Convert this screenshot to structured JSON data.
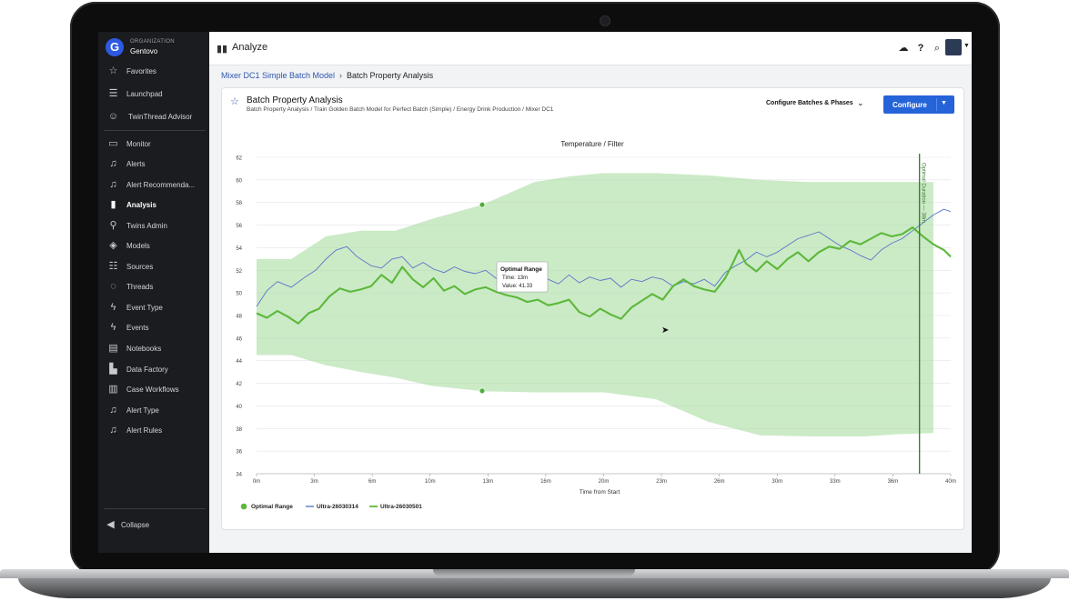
{
  "org": {
    "logo": "G",
    "label": "ORGANIZATION",
    "name": "Gentovo"
  },
  "sidebar": {
    "items": [
      {
        "label": "Favorites",
        "icon": "star-icon"
      },
      {
        "label": "Launchpad",
        "icon": "launchpad-icon"
      },
      {
        "label": "TwinThread Advisor",
        "icon": "advisor-icon"
      },
      {
        "label": "Monitor",
        "icon": "monitor-icon"
      },
      {
        "label": "Alerts",
        "icon": "bell-icon"
      },
      {
        "label": "Alert Recommenda...",
        "icon": "bell-icon"
      },
      {
        "label": "Analysis",
        "icon": "bar-chart-icon",
        "active": true
      },
      {
        "label": "Twins Admin",
        "icon": "twins-icon"
      },
      {
        "label": "Models",
        "icon": "layers-icon"
      },
      {
        "label": "Sources",
        "icon": "database-icon"
      },
      {
        "label": "Threads",
        "icon": "threads-icon"
      },
      {
        "label": "Event Type",
        "icon": "lightning-icon"
      },
      {
        "label": "Events",
        "icon": "lightning-icon"
      },
      {
        "label": "Notebooks",
        "icon": "notebook-icon"
      },
      {
        "label": "Data Factory",
        "icon": "factory-icon"
      },
      {
        "label": "Case Workflows",
        "icon": "columns-icon"
      },
      {
        "label": "Alert Type",
        "icon": "bell-icon"
      },
      {
        "label": "Alert Rules",
        "icon": "bell-icon"
      }
    ],
    "collapse_label": "Collapse"
  },
  "header": {
    "title": "Analyze"
  },
  "breadcrumb": {
    "link": "Mixer DC1 Simple Batch Model",
    "current": "Batch Property Analysis"
  },
  "card": {
    "title": "Batch Property Analysis",
    "subtitle": "Batch Property Analysis / Train Golden Batch Model for Perfect Batch (Simple) / Energy Drink Production / Mixer DC1",
    "configure_batches_label": "Configure Batches & Phases",
    "configure_button_label": "Configure"
  },
  "colors": {
    "accent": "#2563d9",
    "band": "#a9dca0",
    "series_blue": "#5a77c9",
    "series_green": "#5cb83a",
    "marker": "#3f7e35"
  },
  "chart_data": {
    "type": "line",
    "title": "Temperature / Filter",
    "xlabel": "Time from Start",
    "ylabel": "",
    "xlim": [
      0,
      40
    ],
    "ylim": [
      34,
      62
    ],
    "yticks": [
      "62",
      "60",
      "58",
      "56",
      "54",
      "52",
      "50",
      "48",
      "46",
      "44",
      "42",
      "40",
      "38",
      "36",
      "34"
    ],
    "xticks": [
      "0m",
      "3m",
      "6m",
      "10m",
      "13m",
      "16m",
      "20m",
      "23m",
      "26m",
      "30m",
      "33m",
      "36m",
      "40m"
    ],
    "marker_line": {
      "label": "Optimal Duration — 38m",
      "x": 38.2
    },
    "tooltip": {
      "title": "Optimal Range",
      "time": "Time: 13m",
      "value": "Value: 41.33"
    },
    "legend": [
      "Optimal Range",
      "Ultra-26030314",
      "Ultra-26030501"
    ],
    "legend_placement": "bottom-left",
    "band_points": {
      "x": [
        13,
        13
      ],
      "y": [
        57.8,
        41.33
      ]
    },
    "optimal_range": {
      "x": [
        0,
        2,
        4,
        6,
        8,
        10,
        13,
        16,
        18,
        20,
        23,
        26,
        29,
        32,
        35,
        37,
        39
      ],
      "upper": [
        53,
        53,
        55,
        55.5,
        55.5,
        56.5,
        57.8,
        59.8,
        60.3,
        60.6,
        60.6,
        60.4,
        60,
        59.8,
        59.8,
        59.8,
        59.8
      ],
      "lower": [
        44.5,
        44.5,
        43.6,
        43,
        42.5,
        41.8,
        41.3,
        41.2,
        41.2,
        41.2,
        40.6,
        38.6,
        37.4,
        37.3,
        37.3,
        37.5,
        37.6
      ]
    },
    "series": [
      {
        "name": "Ultra-26030314",
        "color": "#5a77c9",
        "x": [
          0,
          0.6,
          1.2,
          2,
          2.8,
          3.4,
          4,
          4.6,
          5.2,
          5.8,
          6.6,
          7.2,
          7.8,
          8.4,
          9,
          9.6,
          10.2,
          10.8,
          11.4,
          12,
          12.6,
          13.2,
          13.8,
          14.4,
          15,
          15.6,
          16.2,
          16.8,
          17.4,
          18,
          18.6,
          19.2,
          19.8,
          20.4,
          21,
          21.6,
          22.2,
          22.8,
          23.4,
          24,
          24.6,
          25.2,
          25.8,
          26.4,
          27,
          27.6,
          28.2,
          28.8,
          29.4,
          30,
          30.6,
          31.2,
          31.8,
          32.4,
          33,
          33.6,
          34.2,
          34.8,
          35.4,
          36,
          36.6,
          37.2,
          37.8,
          38.4,
          39,
          39.6,
          40
        ],
        "values": [
          48.8,
          50.2,
          51,
          50.5,
          51.4,
          52,
          53,
          53.8,
          54.1,
          53.2,
          52.4,
          52.2,
          53,
          53.2,
          52.2,
          52.7,
          52.1,
          51.8,
          52.3,
          51.9,
          51.7,
          52,
          51.3,
          50.8,
          51.2,
          50.7,
          51.8,
          51.2,
          50.8,
          51.6,
          50.9,
          51.4,
          51.1,
          51.3,
          50.5,
          51.2,
          51,
          51.4,
          51.2,
          50.6,
          51,
          50.8,
          51.2,
          50.6,
          51.8,
          52.4,
          52.9,
          53.6,
          53.2,
          53.6,
          54.2,
          54.8,
          55.1,
          55.4,
          54.8,
          54.2,
          53.8,
          53.3,
          52.9,
          53.8,
          54.4,
          54.8,
          55.5,
          56.2,
          56.9,
          57.4,
          57.2
        ]
      },
      {
        "name": "Ultra-26030501",
        "color": "#5cb83a",
        "x": [
          0,
          0.6,
          1.2,
          1.8,
          2.4,
          3,
          3.6,
          4.2,
          4.8,
          5.4,
          6,
          6.6,
          7.2,
          7.8,
          8.4,
          9,
          9.6,
          10.2,
          10.8,
          11.4,
          12,
          12.6,
          13.2,
          13.8,
          14.4,
          15,
          15.6,
          16.2,
          16.8,
          17.4,
          18,
          18.6,
          19.2,
          19.8,
          20.4,
          21,
          21.6,
          22.2,
          22.8,
          23.4,
          24,
          24.6,
          25.2,
          25.8,
          26.4,
          27,
          27.4,
          27.8,
          28.2,
          28.8,
          29.4,
          30,
          30.6,
          31.2,
          31.8,
          32.4,
          33,
          33.6,
          34.2,
          34.8,
          35.4,
          36,
          36.6,
          37.2,
          37.8,
          38.4,
          39,
          39.6,
          40
        ],
        "values": [
          48.2,
          47.8,
          48.4,
          47.9,
          47.3,
          48.2,
          48.6,
          49.7,
          50.4,
          50.1,
          50.3,
          50.6,
          51.6,
          50.9,
          52.3,
          51.2,
          50.5,
          51.3,
          50.2,
          50.6,
          49.9,
          50.3,
          50.5,
          50.1,
          49.8,
          49.6,
          49.2,
          49.4,
          48.9,
          49.1,
          49.4,
          48.3,
          47.9,
          48.6,
          48.1,
          47.7,
          48.7,
          49.3,
          49.9,
          49.4,
          50.6,
          51.2,
          50.6,
          50.3,
          50.1,
          51.3,
          52.5,
          53.8,
          52.6,
          51.9,
          52.8,
          52.1,
          53,
          53.6,
          52.8,
          53.6,
          54.1,
          53.9,
          54.6,
          54.3,
          54.8,
          55.3,
          55,
          55.2,
          55.8,
          55,
          54.3,
          53.8,
          53.2
        ]
      }
    ]
  }
}
